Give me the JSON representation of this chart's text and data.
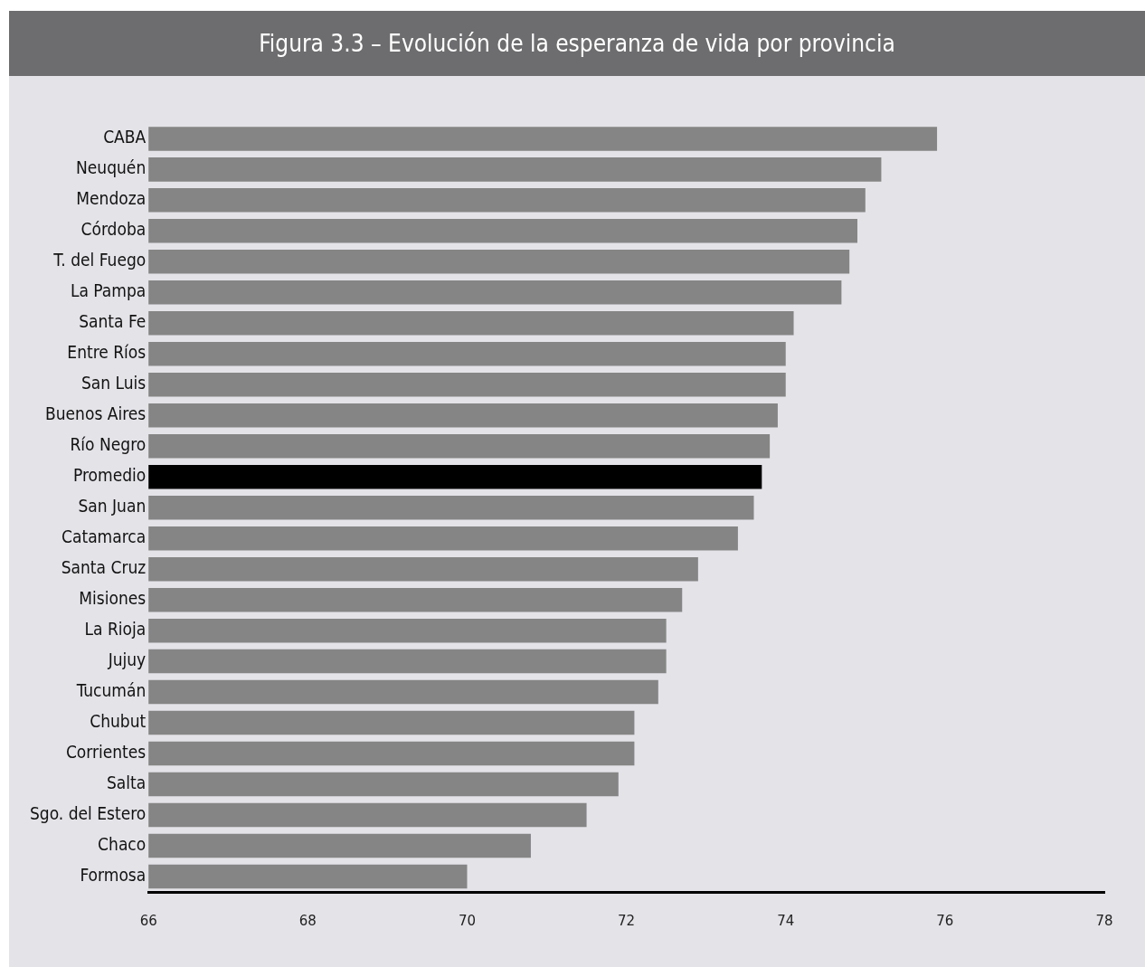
{
  "chart_data": {
    "type": "bar",
    "orientation": "horizontal",
    "title": "Figura 3.3 – Evolución de la esperanza de vida por provincia",
    "categories": [
      "CABA",
      "Neuquén",
      "Mendoza",
      "Córdoba",
      "T. del Fuego",
      "La Pampa",
      "Santa Fe",
      "Entre Ríos",
      "San Luis",
      "Buenos Aires",
      "Río Negro",
      "Promedio",
      "San Juan",
      "Catamarca",
      "Santa Cruz",
      "Misiones",
      "La Rioja",
      "Jujuy",
      "Tucumán",
      "Chubut",
      "Corrientes",
      "Salta",
      "Sgo. del Estero",
      "Chaco",
      "Formosa"
    ],
    "values": [
      75.9,
      75.2,
      75.0,
      74.9,
      74.8,
      74.7,
      74.1,
      74.0,
      74.0,
      73.9,
      73.8,
      73.7,
      73.6,
      73.4,
      72.9,
      72.7,
      72.5,
      72.5,
      72.4,
      72.1,
      72.1,
      71.9,
      71.5,
      70.8,
      70.0
    ],
    "colors": [
      "#858585",
      "#858585",
      "#858585",
      "#858585",
      "#858585",
      "#858585",
      "#858585",
      "#858585",
      "#858585",
      "#858585",
      "#858585",
      "#000000",
      "#858585",
      "#858585",
      "#858585",
      "#858585",
      "#858585",
      "#858585",
      "#858585",
      "#858585",
      "#858585",
      "#858585",
      "#858585",
      "#858585",
      "#858585"
    ],
    "xlim": [
      66,
      78
    ],
    "xticks": [
      66,
      68,
      70,
      72,
      74,
      76,
      78
    ],
    "grid": false,
    "legend": false
  }
}
